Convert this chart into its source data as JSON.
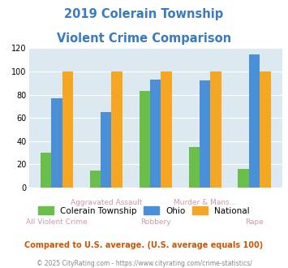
{
  "title_line1": "2019 Colerain Township",
  "title_line2": "Violent Crime Comparison",
  "title_color": "#3a7abf",
  "categories_top": [
    "",
    "Aggravated Assault",
    "",
    "Murder & Mans...",
    ""
  ],
  "categories_bottom": [
    "All Violent Crime",
    "",
    "Robbery",
    "",
    "Rape"
  ],
  "series": {
    "Colerain Township": [
      30,
      15,
      83,
      35,
      16
    ],
    "Ohio": [
      77,
      65,
      93,
      92,
      115
    ],
    "National": [
      100,
      100,
      100,
      100,
      100
    ]
  },
  "colors": {
    "Colerain Township": "#6abf4b",
    "Ohio": "#4a90d9",
    "National": "#f5a623"
  },
  "ylim": [
    0,
    120
  ],
  "yticks": [
    0,
    20,
    40,
    60,
    80,
    100,
    120
  ],
  "background_color": "#dce9f0",
  "top_label_color": "#cc99aa",
  "bottom_label_color": "#cc99aa",
  "footnote1": "Compared to U.S. average. (U.S. average equals 100)",
  "footnote2": "© 2025 CityRating.com - https://www.cityrating.com/crime-statistics/",
  "footnote1_color": "#cc5500",
  "footnote2_color": "#888888",
  "legend_labels": [
    "Colerain Township",
    "Ohio",
    "National"
  ]
}
